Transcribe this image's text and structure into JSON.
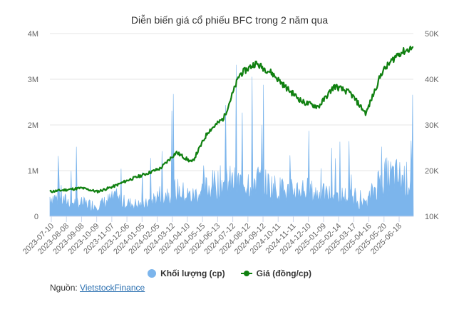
{
  "title": "Diễn biến giá cổ phiếu BFC trong 2 năm qua",
  "legend": {
    "volume_label": "Khối lượng (cp)",
    "price_label": "Giá (đồng/cp)"
  },
  "source": {
    "prefix": "Nguồn:",
    "link_text": "VietstockFinance"
  },
  "colors": {
    "volume": "#7cb5ec",
    "price": "#108010",
    "grid": "#e6e6e6",
    "axis_text": "#666666"
  },
  "chart_data": {
    "type": "bar+line",
    "title": "Diễn biến giá cổ phiếu BFC trong 2 năm qua",
    "xlabel": "",
    "ylabel_left": "Khối lượng (cp)",
    "ylabel_right": "Giá (đồng/cp)",
    "left_axis": {
      "ticks": [
        "0",
        "1M",
        "2M",
        "3M",
        "4M"
      ],
      "range": [
        0,
        4000000
      ]
    },
    "right_axis": {
      "ticks": [
        "10K",
        "20K",
        "30K",
        "40K",
        "50K"
      ],
      "range": [
        10000,
        50000
      ]
    },
    "grid": true,
    "legend_position": "bottom",
    "categories": [
      "2023-07-10",
      "2023-08-08",
      "2023-09-08",
      "2023-10-09",
      "2023-11-07",
      "2023-12-06",
      "2024-01-05",
      "2024-02-05",
      "2024-03-12",
      "2024-04-10",
      "2024-05-15",
      "2024-06-13",
      "2024-07-12",
      "2024-08-12",
      "2024-09-12",
      "2024-10-11",
      "2024-11-11",
      "2024-12-10",
      "2025-01-09",
      "2025-02-14",
      "2025-03-17",
      "2025-04-16",
      "2025-05-20",
      "2025-06-18"
    ],
    "series": [
      {
        "name": "Giá (đồng/cp)",
        "type": "line",
        "axis": "right",
        "values": [
          15400,
          15800,
          16200,
          15400,
          16500,
          18000,
          19200,
          20500,
          24000,
          21800,
          28500,
          31500,
          41000,
          43500,
          41500,
          38000,
          35000,
          34000,
          38500,
          37000,
          32500,
          41500,
          45500,
          47000
        ]
      },
      {
        "name": "Khối lượng (cp)",
        "type": "bar",
        "axis": "left",
        "values": [
          450000,
          350000,
          300000,
          250000,
          400000,
          300000,
          250000,
          500000,
          600000,
          450000,
          650000,
          800000,
          750000,
          850000,
          700000,
          550000,
          650000,
          500000,
          500000,
          450000,
          250000,
          900000,
          900000,
          800000
        ]
      }
    ]
  }
}
